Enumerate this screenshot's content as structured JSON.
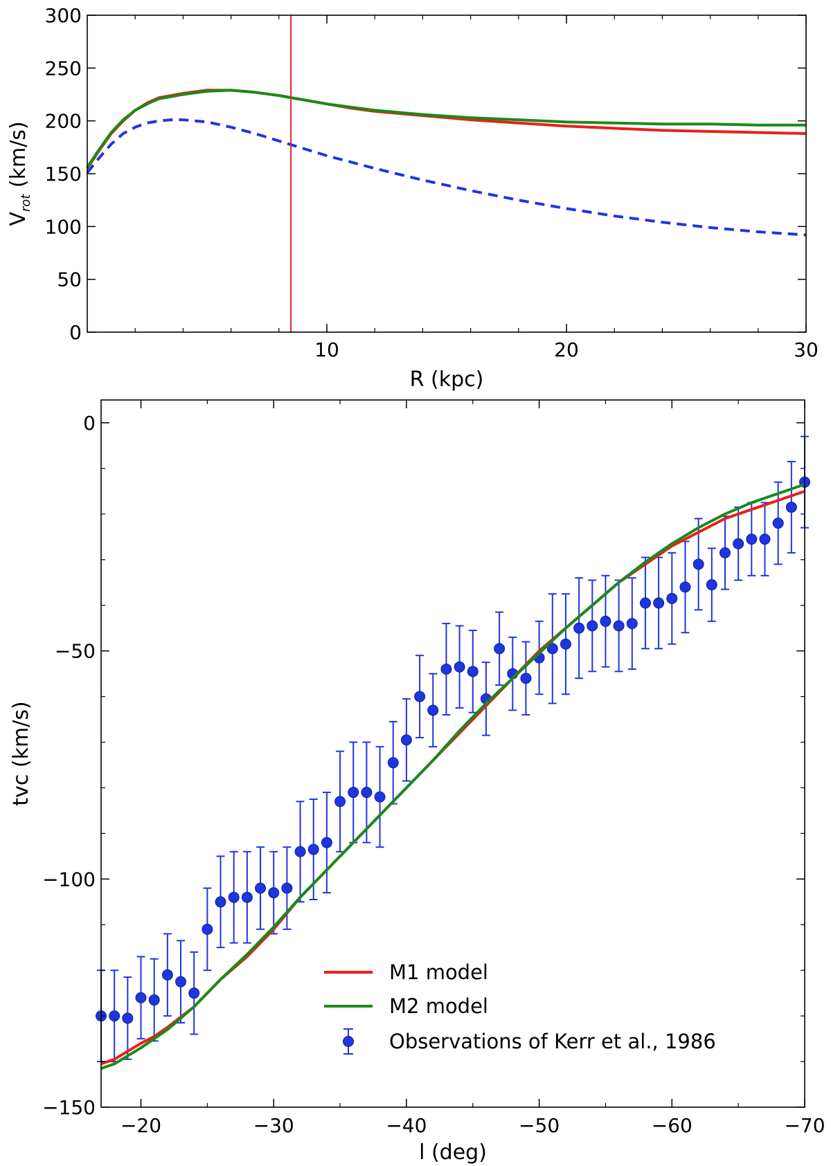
{
  "chart_data": [
    {
      "type": "line",
      "title": "",
      "xlabel": "R (kpc)",
      "ylabel": "V",
      "ylabel_subscript": "rot",
      "ylabel_units": "(km/s)",
      "xlim": [
        0,
        30
      ],
      "ylim": [
        0,
        300
      ],
      "xticks": [
        10,
        20,
        30
      ],
      "xtick_labels": [
        "10",
        "20",
        "30"
      ],
      "yticks": [
        0,
        50,
        100,
        150,
        200,
        250,
        300
      ],
      "ytick_labels": [
        "0",
        "50",
        "100",
        "150",
        "200",
        "250",
        "300"
      ],
      "vertical_line": {
        "x": 8.5,
        "color": "#d62728"
      },
      "series": [
        {
          "name": "M1 model",
          "color": "#e8201a",
          "style": "solid",
          "x": [
            0,
            0.5,
            1,
            1.5,
            2,
            2.5,
            3,
            4,
            5,
            6,
            7,
            8,
            8.5,
            9,
            10,
            11,
            12,
            14,
            16,
            18,
            20,
            22,
            24,
            26,
            28,
            30
          ],
          "y": [
            155,
            172,
            188,
            200,
            210,
            217,
            222,
            226,
            229,
            229,
            227,
            224,
            222,
            220,
            216,
            212,
            209,
            205,
            201,
            198,
            195,
            193,
            191,
            190,
            189,
            188
          ]
        },
        {
          "name": "M2 model",
          "color": "#1a8a1a",
          "style": "solid",
          "x": [
            0,
            0.5,
            1,
            1.5,
            2,
            2.5,
            3,
            4,
            5,
            6,
            7,
            8,
            8.5,
            9,
            10,
            11,
            12,
            14,
            16,
            18,
            20,
            22,
            24,
            26,
            28,
            30
          ],
          "y": [
            156,
            173,
            189,
            201,
            210,
            216,
            221,
            225,
            228,
            229,
            227,
            224,
            222,
            220,
            216,
            213,
            210,
            206,
            203,
            201,
            199,
            198,
            197,
            197,
            196,
            196
          ]
        },
        {
          "name": "dashed",
          "color": "#1f35e0",
          "style": "dashed",
          "x": [
            0,
            0.5,
            1,
            1.5,
            2,
            2.5,
            3,
            3.5,
            4,
            5,
            6,
            7,
            8,
            9,
            10,
            12,
            14,
            16,
            18,
            20,
            22,
            24,
            26,
            28,
            30
          ],
          "y": [
            151,
            165,
            178,
            188,
            194,
            198,
            200,
            201,
            201,
            199,
            194,
            188,
            181,
            174,
            167,
            155,
            144,
            134,
            125,
            117,
            110,
            104,
            99,
            95,
            92
          ]
        }
      ]
    },
    {
      "type": "line",
      "title": "",
      "xlabel": "l (deg)",
      "ylabel": "tvc (km/s)",
      "xlim": [
        -17,
        -70
      ],
      "ylim": [
        -150,
        5
      ],
      "xticks": [
        -20,
        -30,
        -40,
        -50,
        -60,
        -70
      ],
      "xtick_labels": [
        "−20",
        "−30",
        "−40",
        "−50",
        "−60",
        "−70"
      ],
      "yticks": [
        0,
        -50,
        -100,
        -150
      ],
      "ytick_labels": [
        "0",
        "−50",
        "−100",
        "−150"
      ],
      "legend_location": "lower-center",
      "legend": [
        {
          "label": "M1 model",
          "color": "#e8201a",
          "kind": "line"
        },
        {
          "label": "M2 model",
          "color": "#1a8a1a",
          "kind": "line"
        },
        {
          "label": "Observations of Kerr et al., 1986",
          "color": "#1f35e0",
          "kind": "errorbar"
        }
      ],
      "series": [
        {
          "name": "M1 model",
          "color": "#e8201a",
          "x": [
            -17,
            -18,
            -20,
            -21,
            -22,
            -24,
            -26,
            -28,
            -30,
            -32,
            -34,
            -36,
            -38,
            -40,
            -42,
            -44,
            -46,
            -48,
            -50,
            -52,
            -54,
            -56,
            -58,
            -60,
            -62,
            -64,
            -66,
            -68,
            -70
          ],
          "y": [
            -140.5,
            -139.5,
            -136,
            -134.5,
            -132.5,
            -128,
            -122,
            -117,
            -111,
            -104,
            -98,
            -92,
            -86,
            -80,
            -74,
            -68,
            -62,
            -56,
            -50,
            -45,
            -40,
            -35,
            -31,
            -27,
            -24,
            -21,
            -19,
            -17,
            -15
          ]
        },
        {
          "name": "M2 model",
          "color": "#1a8a1a",
          "x": [
            -17,
            -18,
            -20,
            -22,
            -24,
            -26,
            -28,
            -30,
            -32,
            -34,
            -36,
            -38,
            -40,
            -42,
            -44,
            -46,
            -48,
            -50,
            -52,
            -54,
            -56,
            -58,
            -60,
            -62,
            -64,
            -66,
            -68,
            -70
          ],
          "y": [
            -141.5,
            -140.5,
            -137,
            -133,
            -128,
            -122,
            -116.5,
            -110.5,
            -104,
            -98,
            -92,
            -86,
            -80,
            -74,
            -67.5,
            -61.5,
            -56,
            -50.5,
            -45,
            -40,
            -35,
            -30.5,
            -26.5,
            -23,
            -20,
            -17.5,
            -15.5,
            -13.5
          ]
        },
        {
          "name": "Observations of Kerr et al., 1986",
          "color": "#1f35e0",
          "kind": "errorbar",
          "x": [
            -17,
            -18,
            -19,
            -20,
            -21,
            -22,
            -23,
            -24,
            -25,
            -26,
            -27,
            -28,
            -29,
            -30,
            -31,
            -32,
            -33,
            -34,
            -35,
            -36,
            -37,
            -38,
            -39,
            -40,
            -41,
            -42,
            -43,
            -44,
            -45,
            -46,
            -47,
            -48,
            -49,
            -50,
            -51,
            -52,
            -53,
            -54,
            -55,
            -56,
            -57,
            -58,
            -59,
            -60,
            -61,
            -62,
            -63,
            -64,
            -65,
            -66,
            -67,
            -68,
            -69,
            -70
          ],
          "y": [
            -130,
            -130,
            -130.5,
            -126,
            -126.5,
            -121,
            -122.5,
            -125,
            -111,
            -105,
            -104,
            -104,
            -102,
            -103,
            -102,
            -94,
            -93.5,
            -92,
            -83,
            -81,
            -81,
            -82,
            -74.5,
            -69.5,
            -60,
            -63,
            -54,
            -53.5,
            -54.5,
            -60.5,
            -49.5,
            -55,
            -56,
            -51.5,
            -49.5,
            -48.5,
            -45,
            -44.5,
            -43.5,
            -44.5,
            -44,
            -39.5,
            -39.5,
            -38.5,
            -36,
            -31,
            -35.5,
            -28.5,
            -26.5,
            -25.5,
            -25.5,
            -22,
            -18.5,
            -13
          ],
          "yerr": [
            10,
            10,
            9,
            9,
            9,
            9,
            9,
            9,
            9,
            10,
            10,
            10,
            9,
            9,
            9,
            11,
            11,
            11,
            11,
            11,
            11,
            11,
            9,
            9,
            9,
            8,
            10,
            9,
            9,
            8,
            8,
            8,
            8,
            8,
            12,
            11,
            11,
            10,
            10,
            10,
            10,
            10,
            10,
            10,
            10,
            10,
            8,
            8,
            8,
            8,
            8,
            9,
            10,
            10
          ]
        }
      ]
    }
  ]
}
